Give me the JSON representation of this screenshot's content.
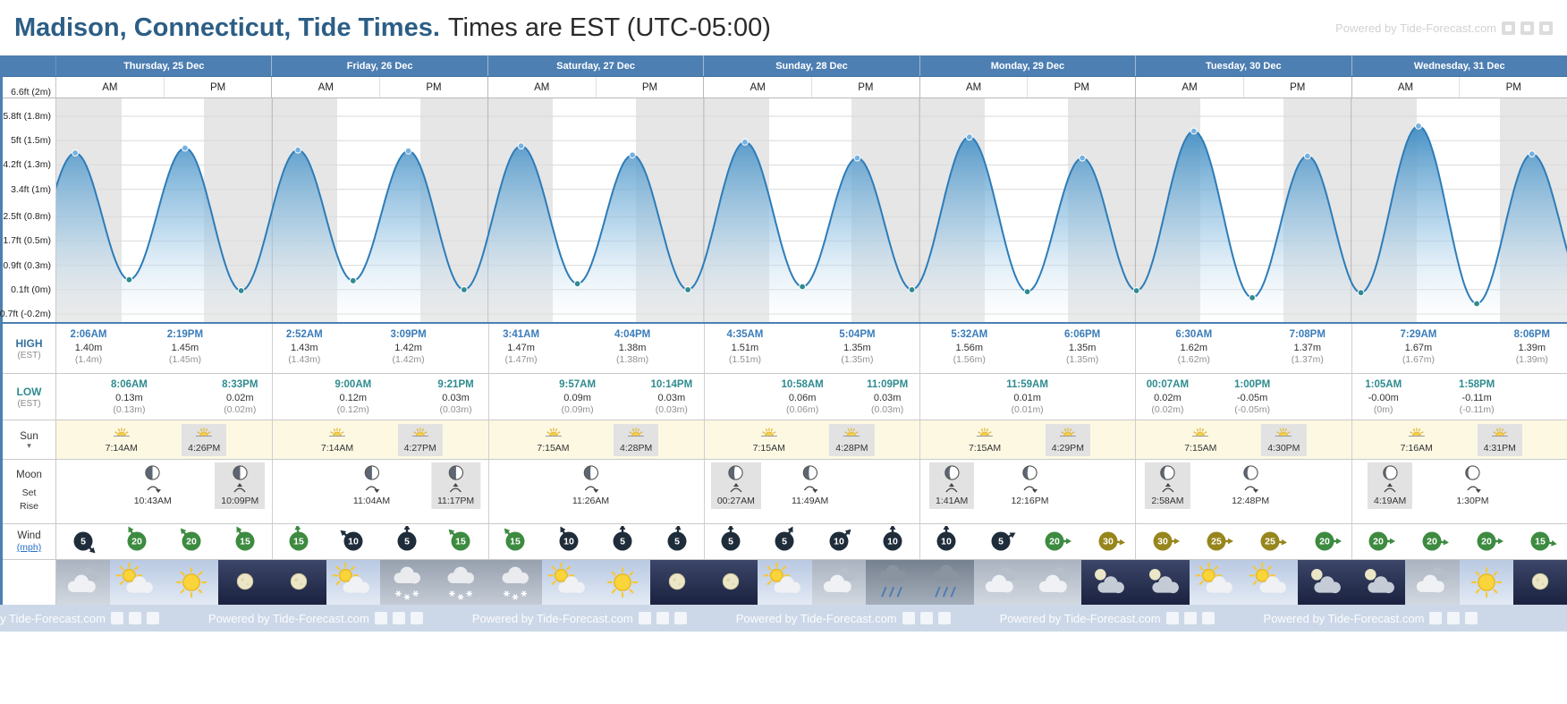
{
  "header": {
    "title_strong": "Madison, Connecticut, Tide Times.",
    "title_rest": "Times are EST (UTC-05:00)",
    "powered_by": "Powered by Tide-Forecast.com"
  },
  "footer": {
    "powered_by": "Powered by Tide-Forecast.com",
    "repeat": 6
  },
  "row_labels": {
    "high": "HIGH",
    "high_sub": "(EST)",
    "low": "LOW",
    "low_sub": "(EST)",
    "sun": "Sun",
    "sun_expander": "▾",
    "moon": "Moon",
    "moon_set": "Set",
    "moon_rise": "Rise",
    "wind": "Wind",
    "wind_unit": "(mph)"
  },
  "ampm": [
    "AM",
    "PM"
  ],
  "chart_data": {
    "type": "area",
    "title": "7-day tide height curve, Madison, Connecticut",
    "x_axis": "Time (EST), Thu 25 Dec - Wed 31 Dec",
    "y_unit": "m",
    "y_range_ft": [
      -0.7,
      6.6
    ],
    "y_axis": [
      {
        "label": "6.6ft (2m)",
        "ft": 6.6
      },
      {
        "label": "5.8ft (1.8m)",
        "ft": 5.8
      },
      {
        "label": "5ft (1.5m)",
        "ft": 5.0
      },
      {
        "label": "4.2ft (1.3m)",
        "ft": 4.2
      },
      {
        "label": "3.4ft (1m)",
        "ft": 3.4
      },
      {
        "label": "2.5ft (0.8m)",
        "ft": 2.5
      },
      {
        "label": "1.7ft (0.5m)",
        "ft": 1.7
      },
      {
        "label": "0.9ft (0.3m)",
        "ft": 0.9
      },
      {
        "label": "0.1ft (0m)",
        "ft": 0.1
      },
      {
        "label": "-0.7ft (-0.2m)",
        "ft": -0.7
      }
    ],
    "days": [
      {
        "label": "Thursday, 25 Dec",
        "tides": [
          {
            "type": "high",
            "time": "2:06AM",
            "value": "1.40m",
            "alt": "(1.4m)",
            "h": 1.4
          },
          {
            "type": "low",
            "time": "8:06AM",
            "value": "0.13m",
            "alt": "(0.13m)",
            "h": 0.13
          },
          {
            "type": "high",
            "time": "2:19PM",
            "value": "1.45m",
            "alt": "(1.45m)",
            "h": 1.45
          },
          {
            "type": "low",
            "time": "8:33PM",
            "value": "0.02m",
            "alt": "(0.02m)",
            "h": 0.02
          }
        ],
        "sun": {
          "rise": "7:14AM",
          "set": "4:26PM"
        },
        "moon": [
          {
            "event": "set",
            "time": "10:43AM"
          },
          {
            "event": "rise",
            "time": "10:09PM"
          }
        ],
        "wind": [
          {
            "mph": 5,
            "dir": 45
          },
          {
            "mph": 20,
            "dir": -120
          },
          {
            "mph": 20,
            "dir": -130
          },
          {
            "mph": 15,
            "dir": -120
          }
        ],
        "weather": [
          "cloud",
          "sun-cloud",
          "sun",
          "moon"
        ]
      },
      {
        "label": "Friday, 26 Dec",
        "tides": [
          {
            "type": "high",
            "time": "2:52AM",
            "value": "1.43m",
            "alt": "(1.43m)",
            "h": 1.43
          },
          {
            "type": "low",
            "time": "9:00AM",
            "value": "0.12m",
            "alt": "(0.12m)",
            "h": 0.12
          },
          {
            "type": "high",
            "time": "3:09PM",
            "value": "1.42m",
            "alt": "(1.42m)",
            "h": 1.42
          },
          {
            "type": "low",
            "time": "9:21PM",
            "value": "0.03m",
            "alt": "(0.03m)",
            "h": 0.03
          }
        ],
        "sun": {
          "rise": "7:14AM",
          "set": "4:27PM"
        },
        "moon": [
          {
            "event": "set",
            "time": "11:04AM"
          },
          {
            "event": "rise",
            "time": "11:17PM"
          }
        ],
        "wind": [
          {
            "mph": 15,
            "dir": -95
          },
          {
            "mph": 10,
            "dir": -140
          },
          {
            "mph": 5,
            "dir": -90
          },
          {
            "mph": 15,
            "dir": -135
          }
        ],
        "weather": [
          "moon",
          "sun-cloud",
          "snow",
          "snow"
        ]
      },
      {
        "label": "Saturday, 27 Dec",
        "tides": [
          {
            "type": "high",
            "time": "3:41AM",
            "value": "1.47m",
            "alt": "(1.47m)",
            "h": 1.47
          },
          {
            "type": "low",
            "time": "9:57AM",
            "value": "0.09m",
            "alt": "(0.09m)",
            "h": 0.09
          },
          {
            "type": "high",
            "time": "4:04PM",
            "value": "1.38m",
            "alt": "(1.38m)",
            "h": 1.38
          },
          {
            "type": "low",
            "time": "10:14PM",
            "value": "0.03m",
            "alt": "(0.03m)",
            "h": 0.03
          }
        ],
        "sun": {
          "rise": "7:15AM",
          "set": "4:28PM"
        },
        "moon": [
          {
            "event": "set",
            "time": "11:26AM"
          }
        ],
        "wind": [
          {
            "mph": 15,
            "dir": -130
          },
          {
            "mph": 10,
            "dir": -120
          },
          {
            "mph": 5,
            "dir": -90
          },
          {
            "mph": 5,
            "dir": -85
          }
        ],
        "weather": [
          "snow",
          "sun-cloud",
          "sun",
          "moon"
        ]
      },
      {
        "label": "Sunday, 28 Dec",
        "tides": [
          {
            "type": "high",
            "time": "4:35AM",
            "value": "1.51m",
            "alt": "(1.51m)",
            "h": 1.51
          },
          {
            "type": "low",
            "time": "10:58AM",
            "value": "0.06m",
            "alt": "(0.06m)",
            "h": 0.06
          },
          {
            "type": "high",
            "time": "5:04PM",
            "value": "1.35m",
            "alt": "(1.35m)",
            "h": 1.35
          },
          {
            "type": "low",
            "time": "11:09PM",
            "value": "0.03m",
            "alt": "(0.03m)",
            "h": 0.03
          }
        ],
        "sun": {
          "rise": "7:15AM",
          "set": "4:28PM"
        },
        "moon": [
          {
            "event": "rise",
            "time": "00:27AM"
          },
          {
            "event": "set",
            "time": "11:49AM"
          }
        ],
        "wind": [
          {
            "mph": 5,
            "dir": -90
          },
          {
            "mph": 5,
            "dir": -60
          },
          {
            "mph": 10,
            "dir": -45
          },
          {
            "mph": 10,
            "dir": -90
          }
        ],
        "weather": [
          "moon",
          "sun-cloud",
          "cloud",
          "rain"
        ]
      },
      {
        "label": "Monday, 29 Dec",
        "tides": [
          {
            "type": "high",
            "time": "5:32AM",
            "value": "1.56m",
            "alt": "(1.56m)",
            "h": 1.56
          },
          {
            "type": "low",
            "time": "11:59AM",
            "value": "0.01m",
            "alt": "(0.01m)",
            "h": 0.01
          },
          {
            "type": "high",
            "time": "6:06PM",
            "value": "1.35m",
            "alt": "(1.35m)",
            "h": 1.35
          }
        ],
        "sun": {
          "rise": "7:15AM",
          "set": "4:29PM"
        },
        "moon": [
          {
            "event": "rise",
            "time": "1:41AM"
          },
          {
            "event": "set",
            "time": "12:16PM"
          }
        ],
        "wind": [
          {
            "mph": 10,
            "dir": -90
          },
          {
            "mph": 5,
            "dir": -30
          },
          {
            "mph": 20,
            "dir": 0
          },
          {
            "mph": 30,
            "dir": 5
          }
        ],
        "weather": [
          "rain",
          "cloud",
          "cloud",
          "moon-cloud"
        ]
      },
      {
        "label": "Tuesday, 30 Dec",
        "tides": [
          {
            "type": "low",
            "time": "00:07AM",
            "value": "0.02m",
            "alt": "(0.02m)",
            "h": 0.02
          },
          {
            "type": "high",
            "time": "6:30AM",
            "value": "1.62m",
            "alt": "(1.62m)",
            "h": 1.62
          },
          {
            "type": "low",
            "time": "1:00PM",
            "value": "-0.05m",
            "alt": "(-0.05m)",
            "h": -0.05
          },
          {
            "type": "high",
            "time": "7:08PM",
            "value": "1.37m",
            "alt": "(1.37m)",
            "h": 1.37
          }
        ],
        "sun": {
          "rise": "7:15AM",
          "set": "4:30PM"
        },
        "moon": [
          {
            "event": "rise",
            "time": "2:58AM"
          },
          {
            "event": "set",
            "time": "12:48PM"
          }
        ],
        "wind": [
          {
            "mph": 30,
            "dir": 0
          },
          {
            "mph": 25,
            "dir": 0
          },
          {
            "mph": 25,
            "dir": 5
          },
          {
            "mph": 20,
            "dir": 0
          }
        ],
        "weather": [
          "moon-cloud",
          "sun-cloud",
          "sun-cloud",
          "moon-cloud"
        ]
      },
      {
        "label": "Wednesday, 31 Dec",
        "tides": [
          {
            "type": "low",
            "time": "1:05AM",
            "value": "-0.00m",
            "alt": "(0m)",
            "h": 0.0
          },
          {
            "type": "high",
            "time": "7:29AM",
            "value": "1.67m",
            "alt": "(1.67m)",
            "h": 1.67
          },
          {
            "type": "low",
            "time": "1:58PM",
            "value": "-0.11m",
            "alt": "(-0.11m)",
            "h": -0.11
          },
          {
            "type": "high",
            "time": "8:06PM",
            "value": "1.39m",
            "alt": "(1.39m)",
            "h": 1.39
          }
        ],
        "sun": {
          "rise": "7:16AM",
          "set": "4:31PM"
        },
        "moon": [
          {
            "event": "rise",
            "time": "4:19AM"
          },
          {
            "event": "set",
            "time": "1:30PM"
          }
        ],
        "wind": [
          {
            "mph": 20,
            "dir": 0
          },
          {
            "mph": 20,
            "dir": 5
          },
          {
            "mph": 20,
            "dir": 0
          },
          {
            "mph": 15,
            "dir": 10
          }
        ],
        "weather": [
          "moon-cloud",
          "cloud",
          "sun",
          "moon"
        ]
      }
    ]
  }
}
